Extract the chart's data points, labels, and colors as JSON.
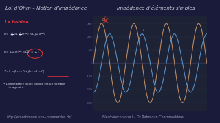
{
  "bg_color": "#1a1a3a",
  "left_panel_bg": "#1e1e3a",
  "right_panel_bg": "#1e2235",
  "title_bar_bg": "#12122a",
  "footer_bg": "#0d0d1e",
  "title_left": "Loi d’Ohm – Notion d’impédance",
  "title_right": "Impédance d’éléments simples",
  "title_color": "#c8c8d8",
  "title_fontsize": 5.2,
  "footer_left": "http://eb-rahmoun.univ-boumerdes.dz/",
  "footer_right": "Electrotechnique I – Dr Rahmoun Chermseddine",
  "footer_color": "#9999bb",
  "footer_fontsize": 3.5,
  "bobine_label": "La bobine",
  "bobine_color": "#ee3333",
  "text_color": "#d8d8e8",
  "wave_color_u": "#c8956c",
  "wave_color_i": "#5b9bd5",
  "wave_amplitude_u": 300,
  "wave_amplitude_i": 220,
  "wave_phase_shift": 1.5707963,
  "num_cycles": 3.5,
  "yticks": [
    300,
    200,
    100,
    0,
    -100,
    -200,
    -300
  ],
  "axis_color": "#444466",
  "tick_color": "#777799",
  "tick_fontsize": 2.8,
  "panel_split": 0.42,
  "arrow_color": "#cc3333"
}
